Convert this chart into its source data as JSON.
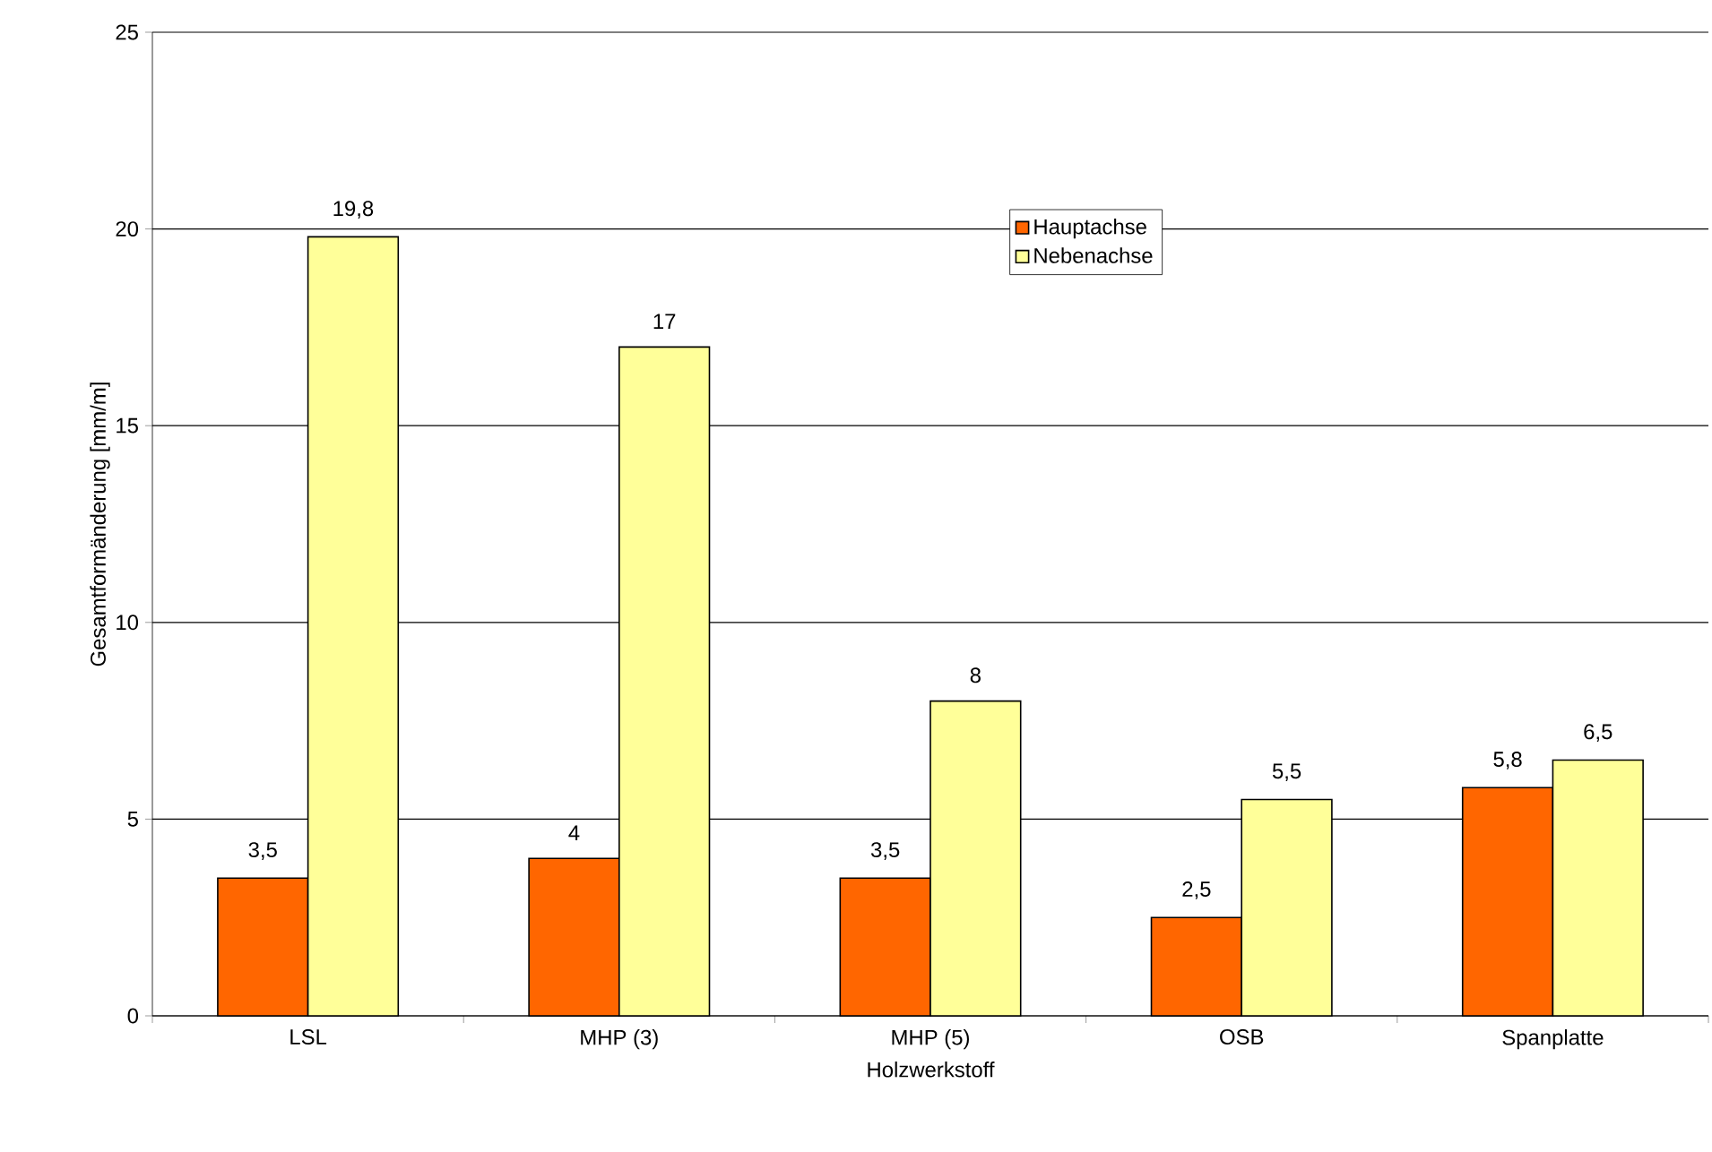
{
  "chart_data": {
    "type": "bar",
    "xlabel": "Holzwerkstoff",
    "ylabel": "Gesamtformänderung [mm/m]",
    "categories": [
      "LSL",
      "MHP (3)",
      "MHP (5)",
      "OSB",
      "Spanplatte"
    ],
    "series": [
      {
        "name": "Hauptachse",
        "color": "#ff6600",
        "values": [
          3.5,
          4,
          3.5,
          2.5,
          5.8
        ],
        "value_labels": [
          "3,5",
          "4",
          "3,5",
          "2,5",
          "5,8"
        ]
      },
      {
        "name": "Nebenachse",
        "color": "#ffff99",
        "values": [
          19.8,
          17,
          8,
          5.5,
          6.5
        ],
        "value_labels": [
          "19,8",
          "17",
          "8",
          "5,5",
          "6,5"
        ]
      }
    ],
    "ylim": [
      0,
      25
    ],
    "yticks": [
      0,
      5,
      10,
      15,
      20,
      25
    ],
    "grid": "y",
    "legend": "top"
  }
}
